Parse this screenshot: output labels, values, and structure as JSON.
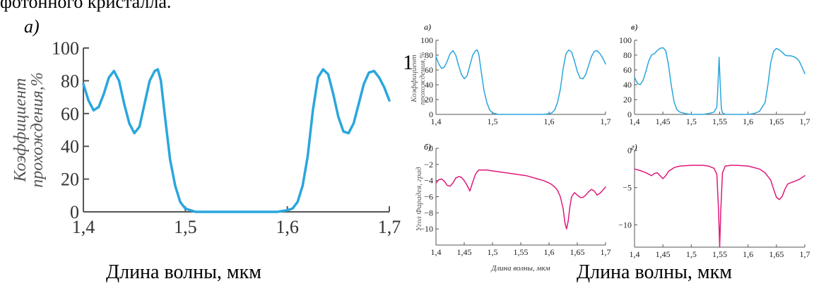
{
  "header_fragment": "фотонного кристалла.",
  "stray_digit": "1",
  "caption_left": "Длина волны, мкм",
  "caption_right": "Длина волны, мкм",
  "colors": {
    "transmission": "#2aa6dd",
    "faraday": "#e0197a",
    "axis": "#555555"
  },
  "chart_data": [
    {
      "id": "big",
      "type": "line",
      "panel_label": "а)",
      "ylabel_line1": "Коэффициент",
      "ylabel_line2": "прохождения,%",
      "xlim": [
        1.4,
        1.7
      ],
      "ylim": [
        0,
        100
      ],
      "xticks": [
        1.4,
        1.5,
        1.6,
        1.7
      ],
      "xtick_labels": [
        "1,4",
        "1,5",
        "1,6",
        "1,7"
      ],
      "yticks": [
        0,
        20,
        40,
        60,
        80,
        100
      ],
      "ytick_labels": [
        "0",
        "20",
        "40",
        "60",
        "80",
        "100"
      ],
      "series": [
        {
          "values_x": [
            1.4,
            1.405,
            1.41,
            1.415,
            1.42,
            1.425,
            1.43,
            1.435,
            1.44,
            1.445,
            1.45,
            1.455,
            1.46,
            1.465,
            1.47,
            1.473,
            1.476,
            1.48,
            1.485,
            1.49,
            1.495,
            1.5,
            1.505,
            1.51,
            1.52,
            1.53,
            1.54,
            1.55,
            1.56,
            1.57,
            1.58,
            1.59,
            1.6,
            1.605,
            1.61,
            1.615,
            1.62,
            1.625,
            1.63,
            1.635,
            1.64,
            1.645,
            1.65,
            1.655,
            1.66,
            1.665,
            1.67,
            1.675,
            1.68,
            1.685,
            1.69,
            1.695,
            1.7
          ],
          "values_y": [
            78,
            68,
            62,
            64,
            72,
            82,
            86,
            80,
            66,
            54,
            48,
            52,
            66,
            80,
            86,
            87,
            80,
            58,
            32,
            16,
            6,
            2,
            1,
            0,
            0,
            0,
            0,
            0,
            0,
            0,
            0,
            0,
            1,
            2,
            6,
            16,
            34,
            62,
            82,
            87,
            84,
            72,
            58,
            49,
            48,
            54,
            66,
            78,
            85,
            86,
            82,
            76,
            68
          ]
        }
      ]
    },
    {
      "id": "a",
      "type": "line",
      "panel_label": "а)",
      "ylabel_line1": "Коэффициент",
      "ylabel_line2": "прохождения,%",
      "xlim": [
        1.4,
        1.7
      ],
      "ylim": [
        0,
        100
      ],
      "xticks": [
        1.4,
        1.5,
        1.6,
        1.7
      ],
      "xtick_labels": [
        "1,4",
        "1,5",
        "1,6",
        "1,7"
      ],
      "yticks": [
        0,
        20,
        40,
        60,
        80,
        100
      ],
      "ytick_labels": [
        "0",
        "20",
        "40",
        "60",
        "80",
        "100"
      ],
      "series": [
        {
          "values_x": [
            1.4,
            1.405,
            1.41,
            1.415,
            1.42,
            1.425,
            1.43,
            1.435,
            1.44,
            1.445,
            1.45,
            1.455,
            1.46,
            1.465,
            1.47,
            1.473,
            1.476,
            1.48,
            1.485,
            1.49,
            1.495,
            1.5,
            1.505,
            1.51,
            1.52,
            1.53,
            1.54,
            1.55,
            1.56,
            1.57,
            1.58,
            1.59,
            1.6,
            1.605,
            1.61,
            1.615,
            1.62,
            1.625,
            1.63,
            1.635,
            1.64,
            1.645,
            1.65,
            1.655,
            1.66,
            1.665,
            1.67,
            1.675,
            1.68,
            1.685,
            1.69,
            1.695,
            1.7
          ],
          "values_y": [
            78,
            68,
            62,
            64,
            72,
            82,
            86,
            80,
            66,
            54,
            48,
            52,
            66,
            80,
            86,
            87,
            80,
            58,
            32,
            16,
            6,
            2,
            1,
            0,
            0,
            0,
            0,
            0,
            0,
            0,
            0,
            0,
            1,
            2,
            6,
            16,
            34,
            62,
            82,
            87,
            84,
            72,
            58,
            49,
            48,
            54,
            66,
            78,
            85,
            86,
            82,
            76,
            68
          ]
        }
      ]
    },
    {
      "id": "v",
      "type": "line",
      "panel_label": "в)",
      "xlim": [
        1.4,
        1.7
      ],
      "ylim": [
        0,
        100
      ],
      "xticks": [
        1.4,
        1.45,
        1.5,
        1.55,
        1.6,
        1.65,
        1.7
      ],
      "xtick_labels": [
        "1,4",
        "1,45",
        "1,5",
        "1,55",
        "1,6",
        "1,65",
        "1,7"
      ],
      "yticks": [
        0,
        20,
        40,
        60,
        80,
        100
      ],
      "ytick_labels": [
        "0",
        "20",
        "40",
        "60",
        "80",
        "100"
      ],
      "series": [
        {
          "values_x": [
            1.4,
            1.405,
            1.41,
            1.415,
            1.42,
            1.425,
            1.43,
            1.435,
            1.44,
            1.445,
            1.45,
            1.455,
            1.46,
            1.465,
            1.47,
            1.475,
            1.48,
            1.49,
            1.5,
            1.51,
            1.52,
            1.53,
            1.54,
            1.545,
            1.547,
            1.549,
            1.551,
            1.553,
            1.555,
            1.56,
            1.57,
            1.58,
            1.59,
            1.6,
            1.61,
            1.62,
            1.63,
            1.635,
            1.64,
            1.645,
            1.65,
            1.655,
            1.66,
            1.665,
            1.67,
            1.675,
            1.68,
            1.685,
            1.69,
            1.695,
            1.7
          ],
          "values_y": [
            50,
            42,
            40,
            46,
            58,
            72,
            80,
            82,
            86,
            89,
            90,
            86,
            66,
            38,
            16,
            6,
            3,
            1,
            0,
            0,
            0,
            1,
            3,
            10,
            40,
            77,
            40,
            8,
            2,
            0,
            0,
            0,
            0,
            0,
            1,
            4,
            16,
            40,
            70,
            85,
            89,
            87,
            84,
            80,
            79,
            79,
            78,
            76,
            72,
            64,
            55
          ]
        }
      ]
    },
    {
      "id": "b",
      "type": "line",
      "panel_label": "б)",
      "ylabel": "Угол Фарадея, град",
      "xlabel": "Длина волны, мкм",
      "xlim": [
        1.4,
        1.7
      ],
      "ylim": [
        -12,
        0
      ],
      "xticks": [
        1.4,
        1.45,
        1.5,
        1.55,
        1.6,
        1.65,
        1.7
      ],
      "xtick_labels": [
        "1,4",
        "1,45",
        "1,5",
        "1,55",
        "1,6",
        "1,65",
        "1,7"
      ],
      "yticks": [
        0,
        -2,
        -4,
        -6,
        -8,
        -10
      ],
      "ytick_labels": [
        "0",
        "−2",
        "−4",
        "−6",
        "−8",
        "−10"
      ],
      "series": [
        {
          "values_x": [
            1.4,
            1.405,
            1.41,
            1.415,
            1.42,
            1.425,
            1.43,
            1.435,
            1.44,
            1.445,
            1.45,
            1.455,
            1.46,
            1.465,
            1.47,
            1.473,
            1.476,
            1.48,
            1.485,
            1.49,
            1.5,
            1.51,
            1.52,
            1.53,
            1.54,
            1.55,
            1.56,
            1.57,
            1.58,
            1.59,
            1.6,
            1.605,
            1.61,
            1.615,
            1.62,
            1.625,
            1.628,
            1.631,
            1.634,
            1.637,
            1.64,
            1.645,
            1.65,
            1.655,
            1.66,
            1.665,
            1.67,
            1.675,
            1.68,
            1.685,
            1.69,
            1.695,
            1.7
          ],
          "values_y": [
            -4.3,
            -3.9,
            -3.8,
            -4.1,
            -4.6,
            -4.7,
            -4.3,
            -3.7,
            -3.5,
            -3.6,
            -4.0,
            -4.6,
            -5.3,
            -4.2,
            -3.2,
            -2.9,
            -2.7,
            -2.7,
            -2.7,
            -2.7,
            -2.8,
            -2.9,
            -3.0,
            -3.1,
            -3.2,
            -3.3,
            -3.4,
            -3.6,
            -3.8,
            -4.0,
            -4.3,
            -4.5,
            -4.8,
            -5.2,
            -6.0,
            -7.5,
            -9.2,
            -10.0,
            -9.0,
            -7.2,
            -6.0,
            -5.5,
            -5.8,
            -6.1,
            -6.1,
            -5.8,
            -5.4,
            -5.1,
            -5.3,
            -5.8,
            -5.6,
            -5.2,
            -4.8
          ]
        }
      ]
    },
    {
      "id": "g",
      "type": "line",
      "panel_label": "г)",
      "xlim": [
        1.4,
        1.7
      ],
      "ylim": [
        -13,
        0
      ],
      "xticks": [
        1.4,
        1.45,
        1.5,
        1.55,
        1.6,
        1.65,
        1.7
      ],
      "xtick_labels": [
        "1,4",
        "1,45",
        "1,5",
        "1,55",
        "1,6",
        "1,65",
        "1,7"
      ],
      "yticks": [
        0,
        -5,
        -10
      ],
      "ytick_labels": [
        "0",
        "−5",
        "−10"
      ],
      "series": [
        {
          "values_x": [
            1.4,
            1.41,
            1.42,
            1.43,
            1.435,
            1.44,
            1.445,
            1.45,
            1.455,
            1.46,
            1.47,
            1.48,
            1.5,
            1.52,
            1.53,
            1.54,
            1.545,
            1.548,
            1.55,
            1.552,
            1.555,
            1.56,
            1.57,
            1.58,
            1.6,
            1.62,
            1.63,
            1.64,
            1.645,
            1.65,
            1.655,
            1.66,
            1.665,
            1.67,
            1.68,
            1.69,
            1.7
          ],
          "values_y": [
            -2.5,
            -2.7,
            -3.0,
            -3.4,
            -3.1,
            -3.0,
            -3.4,
            -3.8,
            -3.4,
            -2.8,
            -2.3,
            -2.1,
            -2.0,
            -2.0,
            -2.1,
            -2.4,
            -3.2,
            -8.0,
            -13.0,
            -8.0,
            -3.0,
            -2.1,
            -2.0,
            -2.0,
            -2.1,
            -2.5,
            -3.0,
            -4.0,
            -5.2,
            -6.3,
            -6.6,
            -6.2,
            -5.2,
            -4.5,
            -4.2,
            -3.9,
            -3.4
          ]
        }
      ]
    }
  ]
}
